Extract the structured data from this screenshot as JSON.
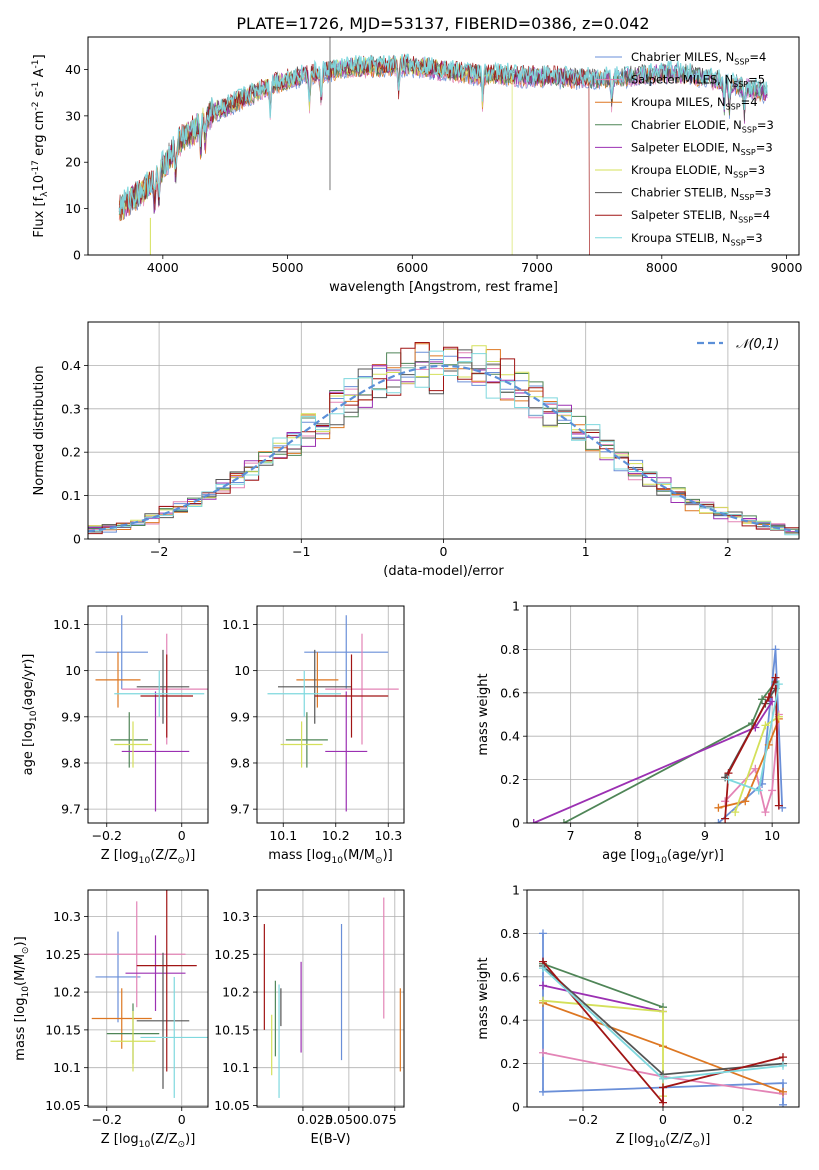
{
  "figure_title": "PLATE=1726, MJD=53137, FIBERID=0386, z=0.042",
  "colors": {
    "chabrier_miles": "#6a8fd8",
    "salpeter_miles": "#e384b6",
    "kroupa_miles": "#dd7722",
    "chabrier_elodie": "#4f8557",
    "salpeter_elodie": "#9b30b2",
    "kroupa_elodie": "#d4e05a",
    "chabrier_stelib": "#555555",
    "salpeter_stelib": "#a01515",
    "kroupa_stelib": "#7fd8de",
    "normal_curve": "#5b8fd8"
  },
  "chart_data": [
    {
      "id": "spectrum",
      "type": "line",
      "xlabel": "wavelength [Angstrom, rest frame]",
      "ylabel": "Flux [f$_\\lambda$10$^{-17}$ erg cm$^{-2}$ s$^{-1}$ A$^{-1}$]",
      "xlim": [
        3400,
        9100
      ],
      "ylim": [
        0,
        47
      ],
      "xticks": [
        4000,
        5000,
        6000,
        7000,
        8000,
        9000
      ],
      "yticks": [
        0,
        10,
        20,
        30,
        40
      ],
      "legend_position": "top-right",
      "continuum": {
        "x": [
          3650,
          3750,
          3850,
          3950,
          4050,
          4150,
          4250,
          4350,
          4500,
          4700,
          4900,
          5100,
          5300,
          5500,
          5700,
          5900,
          6100,
          6300,
          6500,
          6700,
          6900,
          7100,
          7300,
          7500,
          7700,
          7900,
          8100,
          8300,
          8500,
          8700,
          8850
        ],
        "y": [
          10,
          12,
          14,
          17,
          21,
          25,
          27,
          30,
          32,
          34.5,
          37,
          38.5,
          39.5,
          40.5,
          40.5,
          41,
          40.5,
          39.5,
          39,
          39,
          38.5,
          38.5,
          38,
          38,
          38.5,
          39,
          39.5,
          38.5,
          37.5,
          36,
          35
        ]
      },
      "series": [
        {
          "name": "Chabrier MILES, N$_{SSP}$=4",
          "color_key": "chabrier_miles"
        },
        {
          "name": "Salpeter MILES, N$_{SSP}$=5",
          "color_key": "salpeter_miles"
        },
        {
          "name": "Kroupa MILES, N$_{SSP}$=4",
          "color_key": "kroupa_miles"
        },
        {
          "name": "Chabrier ELODIE, N$_{SSP}$=3",
          "color_key": "chabrier_elodie"
        },
        {
          "name": "Salpeter ELODIE, N$_{SSP}$=3",
          "color_key": "salpeter_elodie"
        },
        {
          "name": "Kroupa ELODIE, N$_{SSP}$=3",
          "color_key": "kroupa_elodie",
          "x_max": 6800
        },
        {
          "name": "Chabrier STELIB, N$_{SSP}$=3",
          "color_key": "chabrier_stelib"
        },
        {
          "name": "Salpeter STELIB, N$_{SSP}$=4",
          "color_key": "salpeter_stelib",
          "x_max": 7420
        },
        {
          "name": "Kroupa STELIB, N$_{SSP}$=3",
          "color_key": "kroupa_stelib"
        }
      ]
    },
    {
      "id": "residuals",
      "type": "histogram",
      "xlabel": "(data-model)/error",
      "ylabel": "Normed distribution",
      "xlim": [
        -2.5,
        2.5
      ],
      "ylim": [
        0,
        0.5
      ],
      "xticks": [
        -2,
        -1,
        0,
        1,
        2
      ],
      "yticks": [
        0,
        0.1,
        0.2,
        0.3,
        0.4
      ],
      "grid": true,
      "legend_position": "top-right",
      "normal_label": "$\\mathcal{N}(0,1)$",
      "bin_width": 0.1
    },
    {
      "id": "age_vs_Z",
      "type": "errorbar",
      "xlabel": "Z [log$_{10}$(Z/Z$_\\odot$)]",
      "ylabel": "age  [log$_{10}$(age/yr)]",
      "xlim": [
        -0.25,
        0.07
      ],
      "ylim": [
        9.67,
        10.14
      ],
      "xticks": [
        -0.2,
        0.0
      ],
      "yticks": [
        9.7,
        9.8,
        9.9,
        10.0,
        10.1
      ],
      "grid": true,
      "points": [
        {
          "c": "chabrier_miles",
          "x": -0.16,
          "xe": 0.07,
          "y": 10.04,
          "ye": 0.08
        },
        {
          "c": "salpeter_miles",
          "x": -0.04,
          "xe": 0.12,
          "y": 9.96,
          "ye": 0.12
        },
        {
          "c": "kroupa_miles",
          "x": -0.17,
          "xe": 0.06,
          "y": 9.98,
          "ye": 0.06
        },
        {
          "c": "chabrier_elodie",
          "x": -0.14,
          "xe": 0.05,
          "y": 9.85,
          "ye": 0.06
        },
        {
          "c": "salpeter_elodie",
          "x": -0.07,
          "xe": 0.09,
          "y": 9.825,
          "ye": 0.13
        },
        {
          "c": "kroupa_elodie",
          "x": -0.13,
          "xe": 0.05,
          "y": 9.84,
          "ye": 0.05
        },
        {
          "c": "chabrier_stelib",
          "x": -0.05,
          "xe": 0.07,
          "y": 9.965,
          "ye": 0.08
        },
        {
          "c": "salpeter_stelib",
          "x": -0.04,
          "xe": 0.07,
          "y": 9.945,
          "ye": 0.09
        },
        {
          "c": "kroupa_stelib",
          "x": -0.06,
          "xe": 0.12,
          "y": 9.95,
          "ye": 0.05
        }
      ]
    },
    {
      "id": "age_vs_mass",
      "type": "errorbar",
      "xlabel": "mass [log$_{10}$(M/M$_\\odot$)]",
      "ylabel": "",
      "xlim": [
        10.05,
        10.33
      ],
      "ylim": [
        9.67,
        10.14
      ],
      "xticks": [
        10.1,
        10.2,
        10.3
      ],
      "yticks": [
        9.7,
        9.8,
        9.9,
        10.0,
        10.1
      ],
      "grid": true,
      "points": [
        {
          "c": "chabrier_miles",
          "x": 10.22,
          "xe": 0.08,
          "y": 10.04,
          "ye": 0.08
        },
        {
          "c": "salpeter_miles",
          "x": 10.25,
          "xe": 0.07,
          "y": 9.96,
          "ye": 0.12
        },
        {
          "c": "kroupa_miles",
          "x": 10.165,
          "xe": 0.04,
          "y": 9.98,
          "ye": 0.06
        },
        {
          "c": "chabrier_elodie",
          "x": 10.145,
          "xe": 0.04,
          "y": 9.85,
          "ye": 0.06
        },
        {
          "c": "salpeter_elodie",
          "x": 10.22,
          "xe": 0.04,
          "y": 9.825,
          "ye": 0.13
        },
        {
          "c": "kroupa_elodie",
          "x": 10.135,
          "xe": 0.04,
          "y": 9.84,
          "ye": 0.05
        },
        {
          "c": "chabrier_stelib",
          "x": 10.16,
          "xe": 0.07,
          "y": 9.965,
          "ye": 0.08
        },
        {
          "c": "salpeter_stelib",
          "x": 10.23,
          "xe": 0.07,
          "y": 9.945,
          "ye": 0.09
        },
        {
          "c": "kroupa_stelib",
          "x": 10.14,
          "xe": 0.07,
          "y": 9.95,
          "ye": 0.05
        }
      ]
    },
    {
      "id": "weight_vs_age",
      "type": "line",
      "xlabel": "age  [log$_{10}$(age/yr)]",
      "ylabel": "mass weight",
      "xlim": [
        6.35,
        10.4
      ],
      "ylim": [
        0,
        1.0
      ],
      "xticks": [
        7,
        8,
        9,
        10
      ],
      "yticks": [
        0.0,
        0.2,
        0.4,
        0.6,
        0.8,
        1.0
      ],
      "grid": true,
      "series": [
        {
          "c": "chabrier_miles",
          "points": [
            [
              9.2,
              0.0
            ],
            [
              9.85,
              0.18
            ],
            [
              10.05,
              0.8
            ],
            [
              10.15,
              0.07
            ]
          ]
        },
        {
          "c": "salpeter_miles",
          "points": [
            [
              9.3,
              0.1
            ],
            [
              9.75,
              0.25
            ],
            [
              9.9,
              0.05
            ],
            [
              10.0,
              0.15
            ],
            [
              10.1,
              0.5
            ]
          ]
        },
        {
          "c": "kroupa_miles",
          "points": [
            [
              9.2,
              0.07
            ],
            [
              9.6,
              0.1
            ],
            [
              9.95,
              0.36
            ],
            [
              10.1,
              0.48
            ]
          ]
        },
        {
          "c": "chabrier_elodie",
          "points": [
            [
              6.9,
              0.0
            ],
            [
              9.7,
              0.46
            ],
            [
              9.85,
              0.57
            ],
            [
              10.05,
              0.65
            ]
          ]
        },
        {
          "c": "salpeter_elodie",
          "points": [
            [
              6.45,
              0.0
            ],
            [
              9.75,
              0.44
            ],
            [
              10.0,
              0.56
            ]
          ]
        },
        {
          "c": "kroupa_elodie",
          "points": [
            [
              9.45,
              0.05
            ],
            [
              9.9,
              0.45
            ],
            [
              10.1,
              0.49
            ]
          ]
        },
        {
          "c": "chabrier_stelib",
          "points": [
            [
              9.3,
              0.21
            ],
            [
              9.9,
              0.55
            ],
            [
              10.05,
              0.62
            ]
          ]
        },
        {
          "c": "salpeter_stelib",
          "points": [
            [
              9.3,
              0.02
            ],
            [
              9.35,
              0.23
            ],
            [
              9.95,
              0.58
            ],
            [
              10.05,
              0.67
            ],
            [
              10.1,
              0.08
            ]
          ]
        },
        {
          "c": "kroupa_stelib",
          "points": [
            [
              9.35,
              0.2
            ],
            [
              9.8,
              0.15
            ],
            [
              10.1,
              0.64
            ]
          ]
        }
      ]
    },
    {
      "id": "mass_vs_Z",
      "type": "errorbar",
      "xlabel": "Z [log$_{10}$(Z/Z$_\\odot$)]",
      "ylabel": "mass [log$_{10}$(M/M$_\\odot$)]",
      "xlim": [
        -0.25,
        0.07
      ],
      "ylim": [
        10.048,
        10.335
      ],
      "xticks": [
        -0.2,
        0.0
      ],
      "yticks": [
        10.05,
        10.1,
        10.15,
        10.2,
        10.25,
        10.3
      ],
      "grid": true,
      "points": [
        {
          "c": "chabrier_miles",
          "x": -0.17,
          "xe": 0.06,
          "y": 10.22,
          "ye": 0.06
        },
        {
          "c": "salpeter_miles",
          "x": -0.12,
          "xe": 0.13,
          "y": 10.25,
          "ye": 0.07
        },
        {
          "c": "kroupa_miles",
          "x": -0.16,
          "xe": 0.08,
          "y": 10.165,
          "ye": 0.04
        },
        {
          "c": "chabrier_elodie",
          "x": -0.13,
          "xe": 0.07,
          "y": 10.145,
          "ye": 0.04
        },
        {
          "c": "salpeter_elodie",
          "x": -0.07,
          "xe": 0.08,
          "y": 10.225,
          "ye": 0.05
        },
        {
          "c": "kroupa_elodie",
          "x": -0.13,
          "xe": 0.06,
          "y": 10.135,
          "ye": 0.04
        },
        {
          "c": "chabrier_stelib",
          "x": -0.05,
          "xe": 0.07,
          "y": 10.162,
          "ye": 0.09
        },
        {
          "c": "salpeter_stelib",
          "x": -0.04,
          "xe": 0.08,
          "y": 10.235,
          "ye": 0.14
        },
        {
          "c": "kroupa_stelib",
          "x": -0.02,
          "xe": 0.09,
          "y": 10.14,
          "ye": 0.08
        }
      ]
    },
    {
      "id": "mass_vs_ebv",
      "type": "errorbar",
      "xlabel": "E(B-V)",
      "ylabel": "",
      "xlim": [
        0.0,
        0.08
      ],
      "ylim": [
        10.048,
        10.335
      ],
      "xticks": [
        0.025,
        0.05,
        0.075
      ],
      "xticklabels": [
        "0.025",
        "0.0500.075",
        ""
      ],
      "yticks": [
        10.05,
        10.1,
        10.15,
        10.2,
        10.25,
        10.3
      ],
      "grid": true,
      "points": [
        {
          "c": "chabrier_miles",
          "x": 0.046,
          "y": 10.2,
          "ye": 0.09
        },
        {
          "c": "salpeter_miles",
          "x": 0.069,
          "y": 10.245,
          "ye": 0.08
        },
        {
          "c": "kroupa_miles",
          "x": 0.078,
          "y": 10.15,
          "ye": 0.055
        },
        {
          "c": "chabrier_elodie",
          "x": 0.01,
          "y": 10.165,
          "ye": 0.05
        },
        {
          "c": "salpeter_elodie",
          "x": 0.024,
          "y": 10.18,
          "ye": 0.06
        },
        {
          "c": "kroupa_elodie",
          "x": 0.008,
          "y": 10.13,
          "ye": 0.04
        },
        {
          "c": "chabrier_stelib",
          "x": 0.013,
          "y": 10.18,
          "ye": 0.025
        },
        {
          "c": "salpeter_stelib",
          "x": 0.004,
          "y": 10.22,
          "ye": 0.07
        },
        {
          "c": "kroupa_stelib",
          "x": 0.012,
          "y": 10.135,
          "ye": 0.075
        }
      ]
    },
    {
      "id": "weight_vs_Z",
      "type": "line",
      "xlabel": "Z [log$_{10}$(Z/Z$_\\odot$)]",
      "ylabel": "mass weight",
      "xlim": [
        -0.34,
        0.34
      ],
      "ylim": [
        0,
        1.0
      ],
      "xticks": [
        -0.2,
        0.0,
        0.2
      ],
      "yticks": [
        0.0,
        0.2,
        0.4,
        0.6,
        0.8,
        1.0
      ],
      "grid": true,
      "series": [
        {
          "c": "chabrier_miles",
          "points": [
            [
              -0.3,
              0.8
            ],
            [
              -0.3,
              0.07
            ],
            [
              0.0,
              0.09
            ],
            [
              0.3,
              0.11
            ],
            [
              0.3,
              0.01
            ]
          ]
        },
        {
          "c": "salpeter_miles",
          "points": [
            [
              -0.3,
              0.25
            ],
            [
              0.0,
              0.14
            ],
            [
              0.3,
              0.06
            ]
          ]
        },
        {
          "c": "kroupa_miles",
          "points": [
            [
              -0.3,
              0.48
            ],
            [
              0.0,
              0.28
            ],
            [
              0.3,
              0.07
            ]
          ]
        },
        {
          "c": "chabrier_elodie",
          "points": [
            [
              -0.3,
              0.66
            ],
            [
              0.0,
              0.46
            ]
          ]
        },
        {
          "c": "salpeter_elodie",
          "points": [
            [
              -0.3,
              0.56
            ],
            [
              0.0,
              0.44
            ]
          ]
        },
        {
          "c": "kroupa_elodie",
          "points": [
            [
              -0.3,
              0.49
            ],
            [
              0.0,
              0.44
            ],
            [
              0.0,
              0.05
            ]
          ]
        },
        {
          "c": "chabrier_stelib",
          "points": [
            [
              -0.3,
              0.65
            ],
            [
              0.0,
              0.15
            ],
            [
              0.3,
              0.2
            ]
          ]
        },
        {
          "c": "salpeter_stelib",
          "points": [
            [
              -0.3,
              0.67
            ],
            [
              0.0,
              0.02
            ],
            [
              0.0,
              0.09
            ],
            [
              0.3,
              0.23
            ]
          ]
        },
        {
          "c": "kroupa_stelib",
          "points": [
            [
              -0.3,
              0.64
            ],
            [
              0.0,
              0.13
            ],
            [
              0.3,
              0.19
            ]
          ]
        }
      ]
    }
  ]
}
